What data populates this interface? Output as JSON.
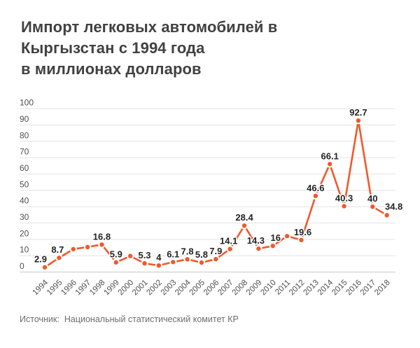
{
  "header": {
    "title": "Импорт легковых автомобилей в\nКыргызстан с 1994 года\nв миллионах долларов"
  },
  "source": {
    "label": "Источник:",
    "text": "Национальный статистический комитет КР"
  },
  "chart_data": {
    "type": "line",
    "title": "Импорт легковых автомобилей в Кыргызстан с 1994 года в миллионах долларов",
    "xlabel": "",
    "ylabel": "",
    "x": [
      1994,
      1995,
      1996,
      1997,
      1998,
      1999,
      2000,
      2001,
      2002,
      2003,
      2004,
      2005,
      2006,
      2007,
      2008,
      2009,
      2010,
      2011,
      2012,
      2013,
      2014,
      2015,
      2016,
      2017,
      2018
    ],
    "values": [
      2.9,
      8.7,
      14,
      15.3,
      16.8,
      5.9,
      9.8,
      5.3,
      4,
      6.1,
      7.8,
      5.8,
      7.9,
      14.1,
      28.4,
      14.3,
      16,
      22,
      19.6,
      46.6,
      66.1,
      40.3,
      92.7,
      40,
      34.8
    ],
    "point_labels": [
      "2.9",
      "8.7",
      null,
      null,
      "16.8",
      "5.9",
      null,
      "5.3",
      "4",
      "6.1",
      "7.8",
      "5.8",
      "7.9",
      "14.1",
      "28.4",
      "14.3",
      "16",
      null,
      "19.6",
      "46.6",
      "66.1",
      "40.3",
      "92.7",
      "40",
      "34.8"
    ],
    "ylim": [
      0,
      100
    ],
    "ytick_step": 10,
    "yticks": [
      0,
      10,
      20,
      30,
      40,
      50,
      60,
      70,
      80,
      90,
      100
    ],
    "grid": "horizontal",
    "legend": "none",
    "colors": {
      "line": "#f0592b",
      "grid": "#e3e3e3",
      "baseline": "#c9c9c9",
      "label": "#232323",
      "axis": "#4f4f4f",
      "title": "#414141",
      "source": "#6d6d6d",
      "background": "#ffffff"
    }
  }
}
